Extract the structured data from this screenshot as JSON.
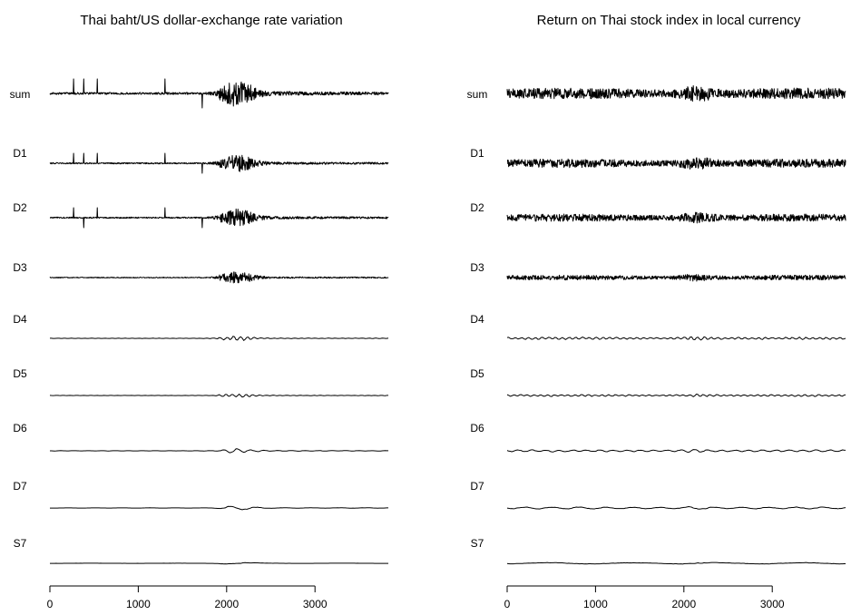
{
  "chart_data": [
    {
      "type": "line",
      "title": "Thai baht/US dollar-exchange rate variation",
      "xlabel": "",
      "ylabel": "",
      "xlim": [
        0,
        3850
      ],
      "xticks": [
        0,
        1000,
        2000,
        3000
      ],
      "series_labels": [
        "sum",
        "D1",
        "D2",
        "D3",
        "D4",
        "D5",
        "D6",
        "D7",
        "S7"
      ],
      "grid": false
    },
    {
      "type": "line",
      "title": "Return on Thai stock index in local currency",
      "xlabel": "",
      "ylabel": "",
      "xlim": [
        0,
        3850
      ],
      "xticks": [
        0,
        1000,
        2000,
        3000
      ],
      "series_labels": [
        "sum",
        "D1",
        "D2",
        "D3",
        "D4",
        "D5",
        "D6",
        "D7",
        "S7"
      ],
      "grid": false
    }
  ]
}
